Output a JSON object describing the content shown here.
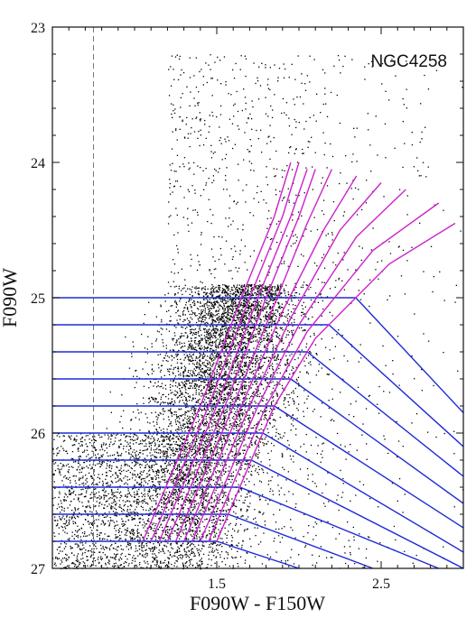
{
  "chart_data": {
    "type": "scatter",
    "title": "",
    "annotation": "NGC4258",
    "xlabel": "F090W - F150W",
    "ylabel": "F090W",
    "xlim": [
      0.5,
      3.0
    ],
    "ylim": [
      27.0,
      23.0
    ],
    "y_inverted": true,
    "grid": false,
    "x_ticks": [
      1.5,
      2.5
    ],
    "x_tick_labels": [
      "1.5",
      "2.5"
    ],
    "y_ticks": [
      23,
      24,
      25,
      26,
      27
    ],
    "y_tick_labels": [
      "23",
      "24",
      "25",
      "26",
      "27"
    ],
    "reference_line_x": 0.75,
    "colors": {
      "points": "#000000",
      "blue_lines": "#1f2bd6",
      "magenta_lines": "#cc22cc",
      "ref_line": "#777777"
    },
    "blue_lines": {
      "description_level": "F090W level of each horizontal selection line",
      "levels": [
        25.0,
        25.2,
        25.4,
        25.6,
        25.8,
        26.0,
        26.2,
        26.4,
        26.6,
        26.8
      ],
      "left_x": 0.5,
      "right_end": [
        [
          3.0,
          25.85
        ],
        [
          3.0,
          26.1
        ],
        [
          3.0,
          26.32
        ],
        [
          3.0,
          26.52
        ],
        [
          3.0,
          26.7
        ],
        [
          3.0,
          26.88
        ],
        [
          3.0,
          27.0
        ],
        [
          2.85,
          27.0
        ],
        [
          2.45,
          27.0
        ],
        [
          2.0,
          27.0
        ]
      ]
    },
    "magenta_lines": {
      "points": [
        [
          [
            1.05,
            26.8
          ],
          [
            1.4,
            25.8
          ],
          [
            1.65,
            25.0
          ],
          [
            1.85,
            24.4
          ],
          [
            1.95,
            24.0
          ]
        ],
        [
          [
            1.1,
            26.8
          ],
          [
            1.45,
            25.8
          ],
          [
            1.7,
            25.0
          ],
          [
            1.9,
            24.4
          ],
          [
            2.0,
            24.0
          ]
        ],
        [
          [
            1.15,
            26.8
          ],
          [
            1.5,
            25.8
          ],
          [
            1.75,
            25.0
          ],
          [
            1.95,
            24.4
          ],
          [
            2.05,
            24.05
          ]
        ],
        [
          [
            1.2,
            26.8
          ],
          [
            1.55,
            25.8
          ],
          [
            1.8,
            25.0
          ],
          [
            2.0,
            24.4
          ],
          [
            2.1,
            24.05
          ]
        ],
        [
          [
            1.25,
            26.8
          ],
          [
            1.6,
            25.8
          ],
          [
            1.85,
            25.05
          ],
          [
            2.05,
            24.45
          ],
          [
            2.2,
            24.05
          ]
        ],
        [
          [
            1.3,
            26.8
          ],
          [
            1.65,
            25.8
          ],
          [
            1.9,
            25.1
          ],
          [
            2.15,
            24.5
          ],
          [
            2.35,
            24.1
          ]
        ],
        [
          [
            1.35,
            26.8
          ],
          [
            1.7,
            25.8
          ],
          [
            1.95,
            25.15
          ],
          [
            2.25,
            24.5
          ],
          [
            2.5,
            24.15
          ]
        ],
        [
          [
            1.4,
            26.8
          ],
          [
            1.75,
            25.8
          ],
          [
            2.0,
            25.2
          ],
          [
            2.35,
            24.55
          ],
          [
            2.65,
            24.2
          ]
        ],
        [
          [
            1.45,
            26.8
          ],
          [
            1.8,
            25.8
          ],
          [
            2.05,
            25.25
          ],
          [
            2.45,
            24.65
          ],
          [
            2.85,
            24.3
          ]
        ],
        [
          [
            1.5,
            26.8
          ],
          [
            1.85,
            25.8
          ],
          [
            2.1,
            25.3
          ],
          [
            2.55,
            24.75
          ],
          [
            2.95,
            24.45
          ]
        ]
      ]
    },
    "scatter_density_model": {
      "main_ridge": {
        "x_at_bottom": 1.2,
        "x_at_top": 1.65,
        "y_range": [
          25.0,
          27.0
        ]
      },
      "field_spread": {
        "x_range": [
          0.5,
          3.0
        ],
        "y_range": [
          23.0,
          27.0
        ]
      }
    }
  }
}
